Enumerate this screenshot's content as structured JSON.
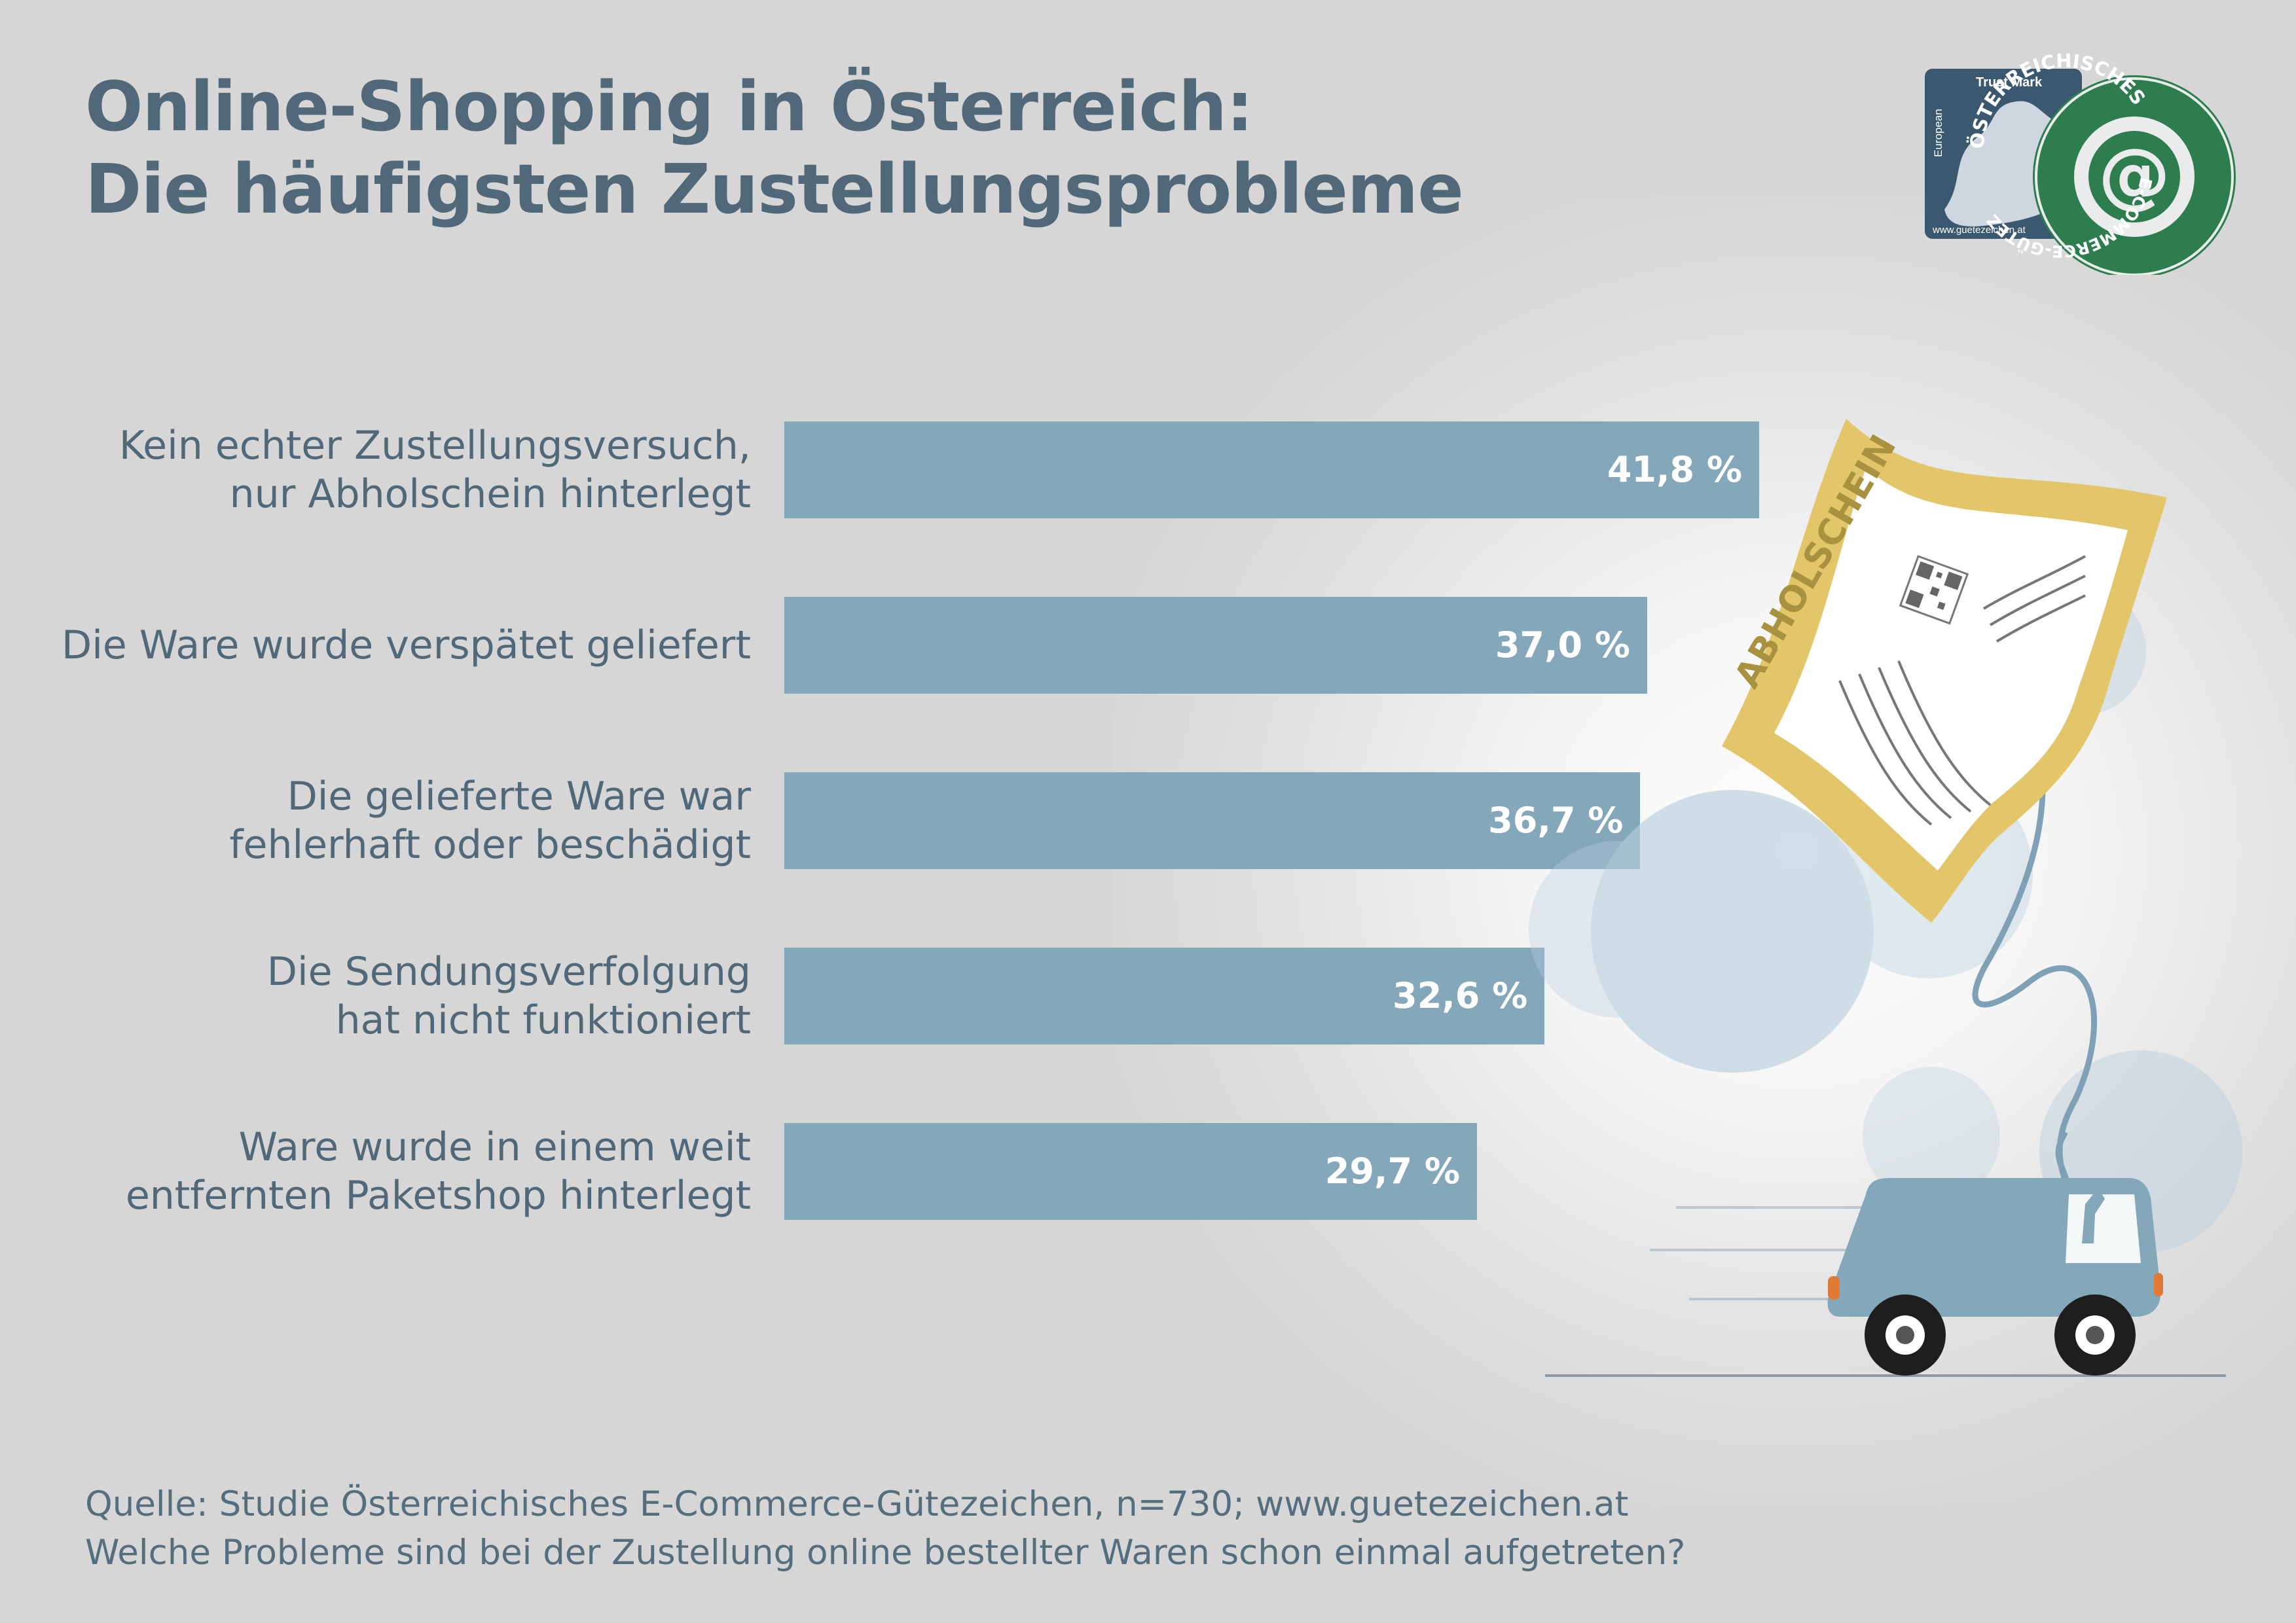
{
  "title": {
    "line1": "Online-Shopping in Österreich:",
    "line2": "Die häufigsten Zustellungsprobleme"
  },
  "chart_data": {
    "type": "bar",
    "orientation": "horizontal",
    "categories": [
      [
        "Kein echter Zustellungsversuch,",
        "nur Abholschein hinterlegt"
      ],
      [
        "Die Ware wurde verspätet geliefert"
      ],
      [
        "Die gelieferte Ware war",
        "fehlerhaft oder beschädigt"
      ],
      [
        "Die Sendungsverfolgung",
        "hat nicht funktioniert"
      ],
      [
        "Ware wurde in einem weit",
        "entfernten Paketshop hinterlegt"
      ]
    ],
    "values": [
      41.8,
      37.0,
      36.7,
      32.6,
      29.7
    ],
    "value_labels": [
      "41,8 %",
      "37,0 %",
      "36,7 %",
      "32,6 %",
      "29,7 %"
    ],
    "bar_color": "#84a8ba",
    "grid": false,
    "legend": "none"
  },
  "source": {
    "line1": "Quelle: Studie Österreichisches E-Commerce-Gütezeichen, n=730; www.guetezeichen.at",
    "line2": "Welche Probleme sind bei der Zustellung online bestellter Waren schon einmal aufgetreten?"
  },
  "illustration": {
    "slip_text": "ABHOLSCHEIN"
  },
  "badge": {
    "trust_mark": "Trust Mark",
    "european": "European",
    "url": "www.guetezeichen.at",
    "ring_top": "ÖSTERREICHISCHES",
    "ring_bottom": "E-COMMERCE-GÜTEZEICHEN"
  },
  "colors": {
    "background": "#d6d6d7",
    "title": "#506877",
    "bar": "#84a8ba",
    "badge_navy": "#3a5870",
    "badge_green": "#2e7d4f",
    "slip_gold": "#e3c66a"
  }
}
